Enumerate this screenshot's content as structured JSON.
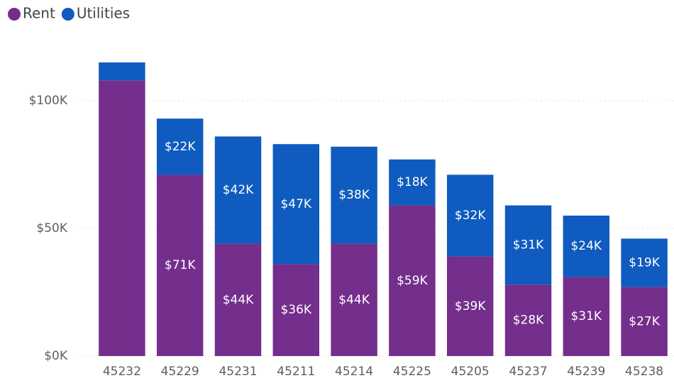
{
  "chart_data": {
    "type": "stacked_bar",
    "categories": [
      "45232",
      "45229",
      "45231",
      "45211",
      "45214",
      "45225",
      "45205",
      "45237",
      "45239",
      "45238"
    ],
    "series": [
      {
        "name": "Rent",
        "color": "#742e8c",
        "values": [
          108000,
          71000,
          44000,
          36000,
          44000,
          59000,
          39000,
          28000,
          31000,
          27000
        ],
        "value_labels": [
          null,
          "$71K",
          "$44K",
          "$36K",
          "$44K",
          "$59K",
          "$39K",
          "$28K",
          "$31K",
          "$27K"
        ]
      },
      {
        "name": "Utilities",
        "color": "#0f5bbf",
        "values": [
          7000,
          22000,
          42000,
          47000,
          38000,
          18000,
          32000,
          31000,
          24000,
          19000
        ],
        "value_labels": [
          null,
          "$22K",
          "$42K",
          "$47K",
          "$38K",
          "$18K",
          "$32K",
          "$31K",
          "$24K",
          "$19K"
        ]
      }
    ],
    "ylim": [
      0,
      120000
    ],
    "yticks": [
      {
        "value": 0,
        "label": "$0K"
      },
      {
        "value": 50000,
        "label": "$50K"
      },
      {
        "value": 100000,
        "label": "$100K"
      }
    ],
    "grid": true,
    "legend": "top-left"
  }
}
